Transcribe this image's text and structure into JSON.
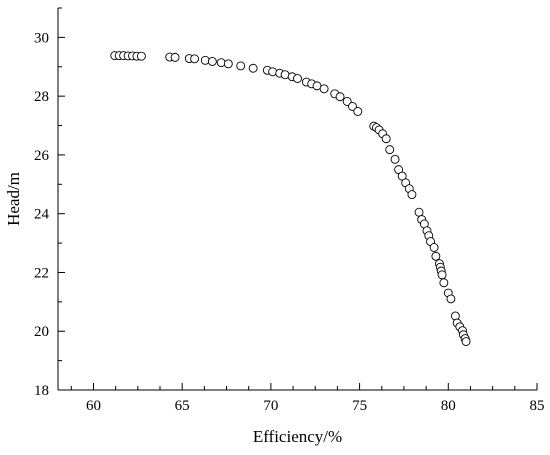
{
  "chart_data": {
    "type": "scatter",
    "xlabel": "Efficiency/%",
    "ylabel": "Head/m",
    "xlim": [
      58,
      85
    ],
    "ylim": [
      18,
      31
    ],
    "xticks": [
      60,
      65,
      70,
      75,
      80,
      85
    ],
    "yticks": [
      18,
      20,
      22,
      24,
      26,
      28,
      30
    ],
    "x_minor_step": 1.25,
    "y_minor_step": 1,
    "grid": false,
    "marker": "open-circle",
    "colors": {
      "marker_stroke": "#000000",
      "marker_fill": "#ffffff",
      "axis": "#000000"
    },
    "series": [
      {
        "points": [
          [
            61.2,
            29.38
          ],
          [
            61.45,
            29.38
          ],
          [
            61.7,
            29.38
          ],
          [
            61.95,
            29.37
          ],
          [
            62.2,
            29.37
          ],
          [
            62.45,
            29.36
          ],
          [
            62.7,
            29.36
          ],
          [
            64.3,
            29.33
          ],
          [
            64.6,
            29.32
          ],
          [
            65.4,
            29.28
          ],
          [
            65.7,
            29.27
          ],
          [
            66.3,
            29.22
          ],
          [
            66.7,
            29.18
          ],
          [
            67.2,
            29.14
          ],
          [
            67.6,
            29.1
          ],
          [
            68.3,
            29.03
          ],
          [
            69.0,
            28.95
          ],
          [
            69.8,
            28.88
          ],
          [
            70.1,
            28.83
          ],
          [
            70.5,
            28.78
          ],
          [
            70.8,
            28.73
          ],
          [
            71.2,
            28.66
          ],
          [
            71.5,
            28.6
          ],
          [
            72.0,
            28.48
          ],
          [
            72.3,
            28.42
          ],
          [
            72.6,
            28.35
          ],
          [
            73.0,
            28.25
          ],
          [
            73.6,
            28.08
          ],
          [
            73.9,
            27.98
          ],
          [
            74.3,
            27.82
          ],
          [
            74.6,
            27.65
          ],
          [
            74.9,
            27.48
          ],
          [
            75.8,
            26.98
          ],
          [
            75.95,
            26.93
          ],
          [
            76.1,
            26.85
          ],
          [
            76.3,
            26.72
          ],
          [
            76.5,
            26.55
          ],
          [
            76.7,
            26.18
          ],
          [
            77.0,
            25.85
          ],
          [
            77.2,
            25.5
          ],
          [
            77.4,
            25.28
          ],
          [
            77.6,
            25.05
          ],
          [
            77.8,
            24.85
          ],
          [
            77.95,
            24.65
          ],
          [
            78.35,
            24.05
          ],
          [
            78.5,
            23.8
          ],
          [
            78.65,
            23.65
          ],
          [
            78.8,
            23.42
          ],
          [
            78.9,
            23.25
          ],
          [
            79.0,
            23.05
          ],
          [
            79.2,
            22.85
          ],
          [
            79.3,
            22.55
          ],
          [
            79.5,
            22.3
          ],
          [
            79.55,
            22.18
          ],
          [
            79.6,
            22.05
          ],
          [
            79.65,
            21.92
          ],
          [
            79.75,
            21.65
          ],
          [
            80.0,
            21.3
          ],
          [
            80.15,
            21.1
          ],
          [
            80.4,
            20.52
          ],
          [
            80.5,
            20.28
          ],
          [
            80.65,
            20.15
          ],
          [
            80.8,
            20.02
          ],
          [
            80.85,
            19.88
          ],
          [
            80.95,
            19.75
          ],
          [
            81.0,
            19.65
          ]
        ]
      }
    ]
  }
}
